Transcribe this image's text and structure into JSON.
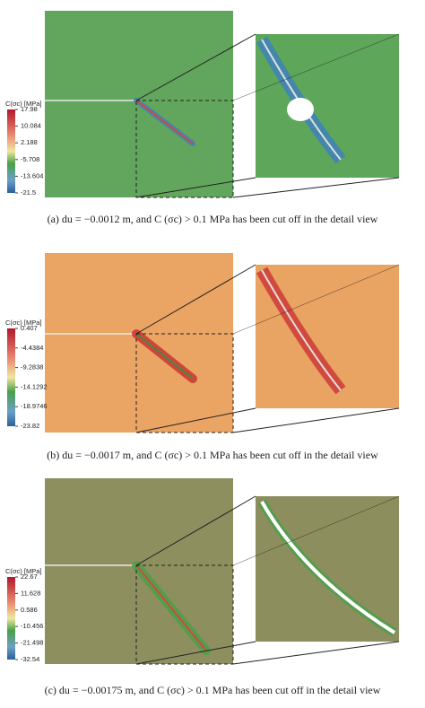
{
  "panels": [
    {
      "colorbar": {
        "label": "C(σc) [MPa]",
        "ticks": [
          "17.98",
          "10.084",
          "2.188",
          "-5.708",
          "-13.604",
          "-21.5"
        ]
      },
      "caption": {
        "label": "(a)",
        "text": "du = −0.0012 m, and C (σc) > 0.1 MPa has been cut off in the detail view"
      }
    },
    {
      "colorbar": {
        "label": "C(σc) [MPa]",
        "ticks": [
          "0.407",
          "-4.4384",
          "-9.2838",
          "-14.1292",
          "-18.9746",
          "-23.82"
        ]
      },
      "caption": {
        "label": "(b)",
        "text": "du = −0.0017 m, and C (σc) > 0.1 MPa has been cut off in the detail view"
      }
    },
    {
      "colorbar": {
        "label": "C(σc) [MPa]",
        "ticks": [
          "22.67",
          "11.628",
          "0.586",
          "-10.456",
          "-21.498",
          "-32.54"
        ]
      },
      "caption": {
        "label": "(c)",
        "text": "du = −0.00175 m, and C (σc) > 0.1 MPa has been cut off in the detail view"
      }
    }
  ]
}
